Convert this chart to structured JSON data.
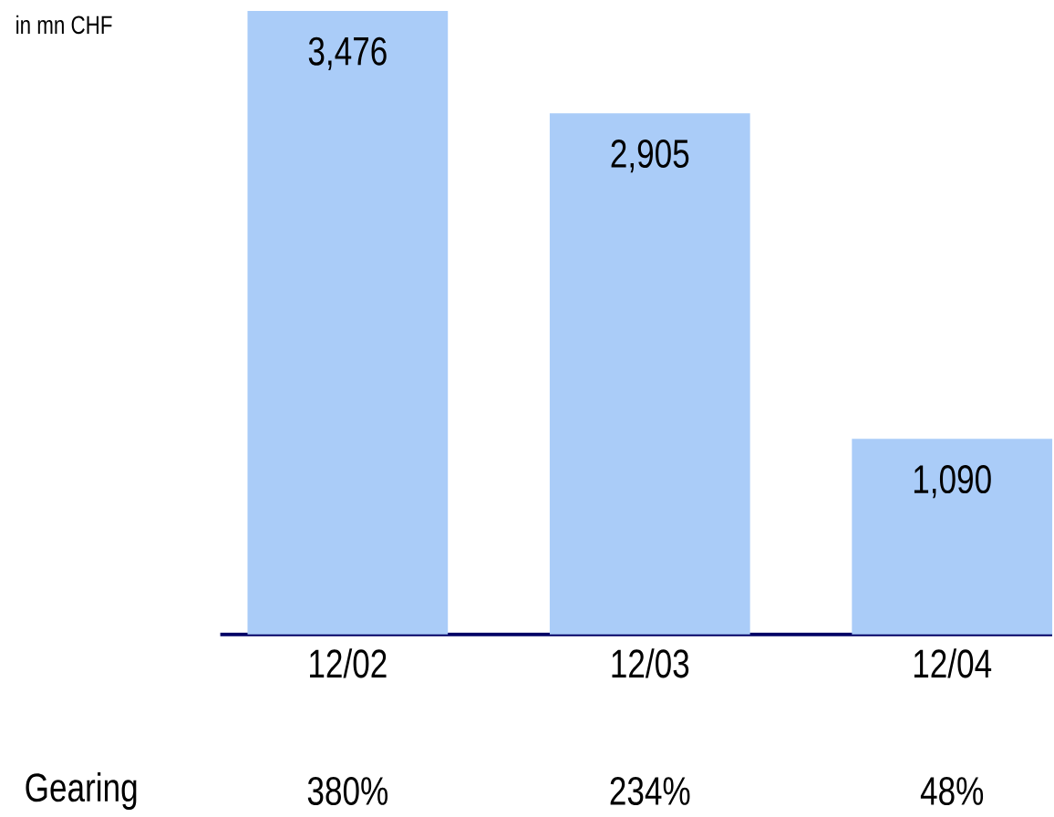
{
  "chart_data": {
    "type": "bar",
    "ylabel": "in mn CHF",
    "categories": [
      "12/02",
      "12/03",
      "12/04"
    ],
    "values": [
      3476,
      2905,
      1090
    ],
    "value_labels": [
      "3,476",
      "2,905",
      "1,090"
    ],
    "color": "#aaccf8",
    "annotations": [
      "Gearing",
      "380%",
      "234%",
      "48%"
    ]
  }
}
